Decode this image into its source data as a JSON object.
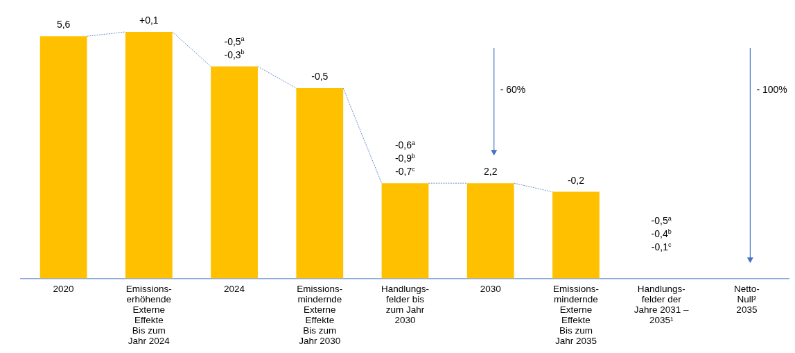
{
  "chart_data": {
    "type": "bar",
    "categories": [
      "2020",
      "Emissions-\nerhöhende\nExterne\nEffekte\nBis zum\nJahr 2024",
      "2024",
      "Emissions-\nmindernde\nExterne\nEffekte\nBis zum\nJahr 2030",
      "Handlungs-\nfelder bis\nzum Jahr\n2030",
      "2030",
      "Emissions-\nmindernde\nExterne\nEffekte\nBis zum\nJahr 2035",
      "Handlungs-\nfelder der\nJahre 2031 –\n2035¹",
      "Netto-\nNull²\n2035"
    ],
    "values": [
      5.6,
      5.7,
      4.9,
      4.4,
      2.2,
      2.2,
      2.0,
      null,
      null
    ],
    "color": "#ffc000",
    "value_labels": [
      "5,6",
      null,
      null,
      null,
      null,
      "2,2",
      null,
      null,
      null
    ],
    "annotations": [
      {
        "text": "+0,1",
        "x": "Emissions-\nerhöhende\nExterne\nEffekte\nBis zum\nJahr 2024",
        "y": 5.7
      },
      {
        "text": "-0,5$^{a}$\n-0,3$^{b}$",
        "x": "2024",
        "y": 4.9
      },
      {
        "text": "-0,5",
        "x": "Emissions-\nmindernde\nExterne\nEffekte\nBis zum\nJahr 2030",
        "y": 4.4
      },
      {
        "text": "-0,6$^{a}$\n-0,9$^{b}$\n-0,7$^{c}$",
        "x": "Handlungs-\nfelder bis\nzum Jahr\n2030",
        "y": 2.2
      },
      {
        "text": "-0,2",
        "x": "Emissions-\nmindernde\nExterne\nEffekte\nBis zum\nJahr 2035",
        "y": 2.0
      },
      "- 60%",
      "-0,5$^{a}$\n-0,4$^{b}$\n-0,1$^{c}$",
      "- 100%"
    ],
    "grid": false,
    "legend": false
  }
}
